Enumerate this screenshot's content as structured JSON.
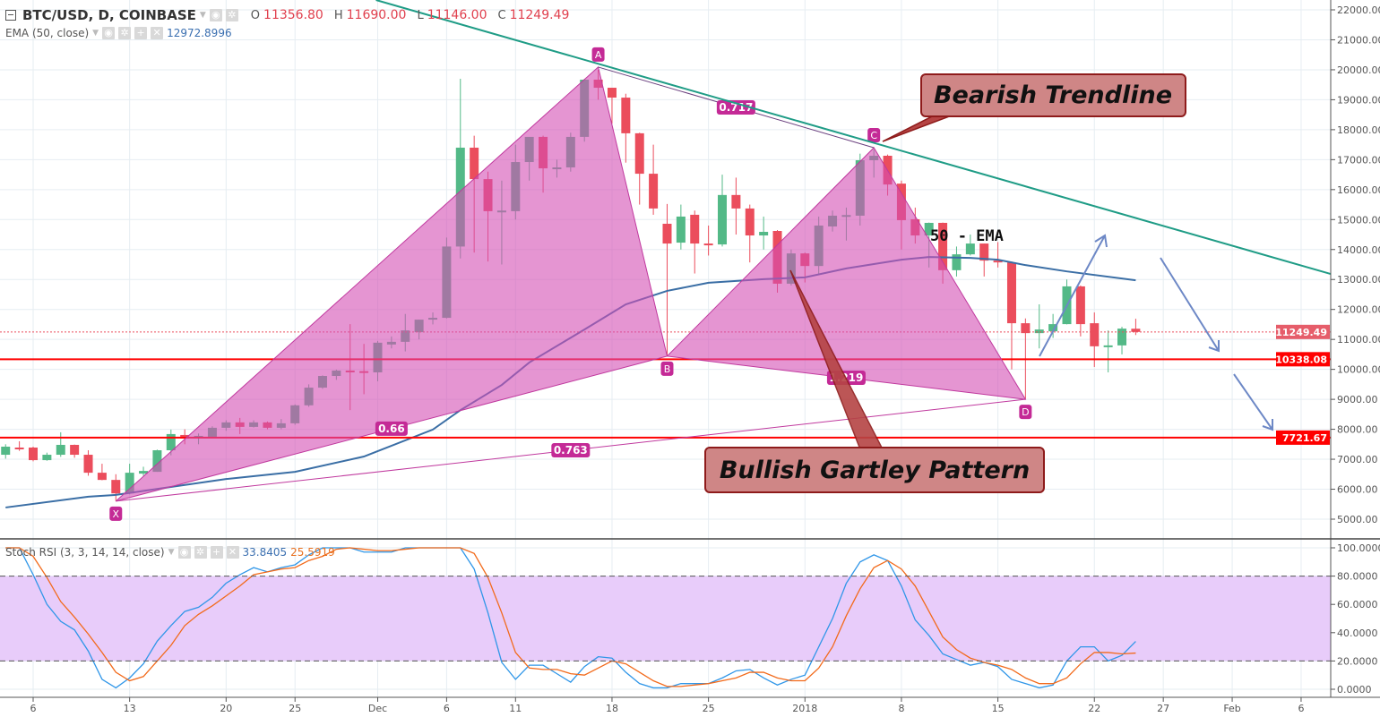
{
  "header": {
    "symbol": "BTC/USD, D, COINBASE",
    "o_label": "O",
    "o_value": "11356.80",
    "h_label": "H",
    "h_value": "11690.00",
    "l_label": "L",
    "l_value": "11146.00",
    "c_label": "C",
    "c_value": "11249.49",
    "ema_label": "EMA (50, close)",
    "ema_value": "12972.8996",
    "stoch_label": "Stoch RSI (3, 3, 14, 14, close)",
    "stoch_k_value": "33.8405",
    "stoch_d_value": "25.5919",
    "icons": [
      "eye-icon",
      "gear-icon",
      "plus-icon",
      "close-icon"
    ]
  },
  "colors": {
    "up": "#53b987",
    "down": "#eb4d5c",
    "ema": "#3a6ea5",
    "trendline": "#1f9c86",
    "pattern_fill": "#d44fb4",
    "stoch_k": "#2f96e8",
    "stoch_d": "#f26a1b",
    "stoch_band": "#e8ccfa",
    "support": "#ff0000",
    "callout_fill": "#cf8686",
    "callout_border": "#8e1b1b",
    "arrow": "#6d88c6"
  },
  "chart_data": [
    {
      "type": "candlestick",
      "title": "BTC/USD, D, COINBASE",
      "ylim": [
        4500,
        22300
      ],
      "y_ticks": [
        "22000.00",
        "21000.00",
        "20000.00",
        "19000.00",
        "18000.00",
        "17000.00",
        "16000.00",
        "15000.00",
        "14000.00",
        "13000.00",
        "12000.00",
        "11000.00",
        "10000.00",
        "9000.00",
        "8000.00",
        "7000.00",
        "6000.00",
        "5000.00"
      ],
      "x_ticks": [
        {
          "date": "2017-11-06",
          "label": "6"
        },
        {
          "date": "2017-11-13",
          "label": "13"
        },
        {
          "date": "2017-11-20",
          "label": "20"
        },
        {
          "date": "2017-11-25",
          "label": "25"
        },
        {
          "date": "2017-12-01",
          "label": "Dec"
        },
        {
          "date": "2017-12-06",
          "label": "6"
        },
        {
          "date": "2017-12-11",
          "label": "11"
        },
        {
          "date": "2017-12-18",
          "label": "18"
        },
        {
          "date": "2017-12-25",
          "label": "25"
        },
        {
          "date": "2018-01-01",
          "label": "2018"
        },
        {
          "date": "2018-01-08",
          "label": "8"
        },
        {
          "date": "2018-01-15",
          "label": "15"
        },
        {
          "date": "2018-01-22",
          "label": "22"
        },
        {
          "date": "2018-01-27",
          "label": "27"
        },
        {
          "date": "2018-02-01",
          "label": "Feb"
        },
        {
          "date": "2018-02-06",
          "label": "6"
        }
      ],
      "grid": true,
      "candles": [
        [
          "2017-11-04",
          7150,
          7500,
          7020,
          7420
        ],
        [
          "2017-11-05",
          7390,
          7600,
          7280,
          7360
        ],
        [
          "2017-11-06",
          7390,
          7420,
          6930,
          6970
        ],
        [
          "2017-11-07",
          6970,
          7220,
          6950,
          7150
        ],
        [
          "2017-11-08",
          7150,
          7900,
          7080,
          7480
        ],
        [
          "2017-11-09",
          7480,
          7490,
          7050,
          7150
        ],
        [
          "2017-11-10",
          7150,
          7300,
          6450,
          6550
        ],
        [
          "2017-11-11",
          6550,
          6850,
          6300,
          6310
        ],
        [
          "2017-11-12",
          6310,
          6500,
          5600,
          5860
        ],
        [
          "2017-11-13",
          5860,
          6850,
          5830,
          6550
        ],
        [
          "2017-11-14",
          6520,
          6750,
          6450,
          6610
        ],
        [
          "2017-11-15",
          6580,
          7320,
          6580,
          7300
        ],
        [
          "2017-11-16",
          7300,
          7990,
          7130,
          7840
        ],
        [
          "2017-11-17",
          7810,
          8000,
          7500,
          7690
        ],
        [
          "2017-11-18",
          7750,
          7860,
          7500,
          7780
        ],
        [
          "2017-11-19",
          7750,
          8100,
          7700,
          8050
        ],
        [
          "2017-11-20",
          8050,
          8300,
          7950,
          8230
        ],
        [
          "2017-11-21",
          8230,
          8380,
          7840,
          8080
        ],
        [
          "2017-11-22",
          8080,
          8300,
          8060,
          8230
        ],
        [
          "2017-11-23",
          8230,
          8260,
          8000,
          8050
        ],
        [
          "2017-11-24",
          8050,
          8340,
          8000,
          8200
        ],
        [
          "2017-11-25",
          8200,
          8830,
          8150,
          8800
        ],
        [
          "2017-11-26",
          8800,
          9500,
          8750,
          9390
        ],
        [
          "2017-11-27",
          9390,
          9800,
          9350,
          9780
        ],
        [
          "2017-11-28",
          9780,
          9990,
          9650,
          9960
        ],
        [
          "2017-11-29",
          9960,
          11510,
          8640,
          9940
        ],
        [
          "2017-11-30",
          9940,
          10850,
          9170,
          9910
        ],
        [
          "2017-12-01",
          9900,
          10950,
          9600,
          10890
        ],
        [
          "2017-12-02",
          10830,
          11100,
          10700,
          10920
        ],
        [
          "2017-12-03",
          10920,
          11850,
          10600,
          11300
        ],
        [
          "2017-12-04",
          11240,
          11660,
          11000,
          11660
        ],
        [
          "2017-12-05",
          11660,
          11900,
          11500,
          11720
        ],
        [
          "2017-12-06",
          11720,
          14400,
          11700,
          14100
        ],
        [
          "2017-12-07",
          14100,
          19700,
          13700,
          17400
        ],
        [
          "2017-12-08",
          17400,
          17800,
          13900,
          16350
        ],
        [
          "2017-12-09",
          16350,
          16600,
          13600,
          15280
        ],
        [
          "2017-12-10",
          15280,
          16300,
          13500,
          15300
        ],
        [
          "2017-12-11",
          15280,
          17500,
          15000,
          16920
        ],
        [
          "2017-12-12",
          16920,
          17700,
          16300,
          17760
        ],
        [
          "2017-12-13",
          17760,
          17800,
          15900,
          16710
        ],
        [
          "2017-12-14",
          16710,
          17000,
          16400,
          16740
        ],
        [
          "2017-12-15",
          16740,
          17900,
          16600,
          17760
        ],
        [
          "2017-12-16",
          17760,
          19700,
          17600,
          19670
        ],
        [
          "2017-12-17",
          19670,
          20000,
          19000,
          19400
        ],
        [
          "2017-12-18",
          19400,
          19400,
          18200,
          19070
        ],
        [
          "2017-12-19",
          19070,
          19200,
          16900,
          17880
        ],
        [
          "2017-12-20",
          17880,
          17900,
          15500,
          16530
        ],
        [
          "2017-12-21",
          16530,
          17500,
          15160,
          15370
        ],
        [
          "2017-12-22",
          14860,
          15520,
          10440,
          14200
        ],
        [
          "2017-12-23",
          14230,
          15500,
          14000,
          15100
        ],
        [
          "2017-12-24",
          15160,
          15300,
          13200,
          14200
        ],
        [
          "2017-12-25",
          14200,
          14800,
          13800,
          14180
        ],
        [
          "2017-12-26",
          14170,
          16500,
          14100,
          15820
        ],
        [
          "2017-12-27",
          15820,
          16400,
          14500,
          15370
        ],
        [
          "2017-12-28",
          15370,
          15500,
          13570,
          14470
        ],
        [
          "2017-12-29",
          14470,
          15100,
          14000,
          14590
        ],
        [
          "2017-12-30",
          14620,
          14650,
          12560,
          12860
        ],
        [
          "2017-12-31",
          12860,
          14000,
          12800,
          13870
        ],
        [
          "2018-01-01",
          13870,
          13900,
          12900,
          13450
        ],
        [
          "2018-01-02",
          13450,
          15100,
          13150,
          14800
        ],
        [
          "2018-01-03",
          14770,
          15300,
          14600,
          15130
        ],
        [
          "2018-01-04",
          15150,
          15400,
          14300,
          15150
        ],
        [
          "2018-01-05",
          15130,
          17200,
          14800,
          16980
        ],
        [
          "2018-01-06",
          16980,
          17340,
          16400,
          17130
        ],
        [
          "2018-01-07",
          17130,
          17170,
          15800,
          16170
        ],
        [
          "2018-01-08",
          16200,
          16300,
          14000,
          14980
        ],
        [
          "2018-01-09",
          15010,
          15400,
          14200,
          14470
        ],
        [
          "2018-01-10",
          14470,
          14900,
          13400,
          14890
        ],
        [
          "2018-01-11",
          14890,
          14900,
          12860,
          13310
        ],
        [
          "2018-01-12",
          13310,
          14100,
          13100,
          13840
        ],
        [
          "2018-01-13",
          13840,
          14500,
          13800,
          14200
        ],
        [
          "2018-01-14",
          14200,
          14200,
          13100,
          13630
        ],
        [
          "2018-01-15",
          13630,
          14250,
          13400,
          13570
        ],
        [
          "2018-01-16",
          13570,
          13600,
          10000,
          11540
        ],
        [
          "2018-01-17",
          11540,
          11700,
          9000,
          11210
        ],
        [
          "2018-01-18",
          11210,
          12170,
          10700,
          11330
        ],
        [
          "2018-01-19",
          11270,
          11850,
          11050,
          11510
        ],
        [
          "2018-01-20",
          11510,
          13000,
          11500,
          12770
        ],
        [
          "2018-01-21",
          12770,
          12800,
          11100,
          11510
        ],
        [
          "2018-01-22",
          11540,
          11900,
          10080,
          10770
        ],
        [
          "2018-01-23",
          10800,
          11300,
          9900,
          10800
        ],
        [
          "2018-01-24",
          10800,
          11420,
          10500,
          11360
        ],
        [
          "2018-01-25",
          11356.8,
          11690,
          11146,
          11249.49
        ]
      ],
      "ema50": [
        [
          "2017-11-04",
          5390
        ],
        [
          "2017-11-10",
          5750
        ],
        [
          "2017-11-12",
          5810
        ],
        [
          "2017-11-20",
          6340
        ],
        [
          "2017-11-25",
          6580
        ],
        [
          "2017-11-30",
          7090
        ],
        [
          "2017-12-05",
          7990
        ],
        [
          "2017-12-07",
          8640
        ],
        [
          "2017-12-10",
          9480
        ],
        [
          "2017-12-12",
          10230
        ],
        [
          "2017-12-16",
          11330
        ],
        [
          "2017-12-19",
          12170
        ],
        [
          "2017-12-22",
          12620
        ],
        [
          "2017-12-25",
          12890
        ],
        [
          "2017-12-29",
          13010
        ],
        [
          "2018-01-01",
          13070
        ],
        [
          "2018-01-04",
          13370
        ],
        [
          "2018-01-08",
          13660
        ],
        [
          "2018-01-10",
          13750
        ],
        [
          "2018-01-13",
          13720
        ],
        [
          "2018-01-15",
          13660
        ],
        [
          "2018-01-17",
          13480
        ],
        [
          "2018-01-20",
          13270
        ],
        [
          "2018-01-25",
          12972.8996
        ]
      ],
      "price_labels": [
        {
          "value": 11249.49,
          "label": "11249.49",
          "style": "last"
        },
        {
          "value": 10338.08,
          "label": "10338.08",
          "style": "support"
        },
        {
          "value": 7721.67,
          "label": "7721.67",
          "style": "support"
        }
      ],
      "trendline": [
        [
          "2017-12-17",
          20200
        ],
        [
          "2018-01-06",
          17560
        ]
      ],
      "pattern": {
        "points": [
          {
            "label": "X",
            "date": "2017-11-12",
            "price": 5600
          },
          {
            "label": "A",
            "date": "2017-12-17",
            "price": 20090
          },
          {
            "label": "B",
            "date": "2017-12-22",
            "price": 10440
          },
          {
            "label": "C",
            "date": "2018-01-06",
            "price": 17400
          },
          {
            "label": "D",
            "date": "2018-01-17",
            "price": 9000
          }
        ],
        "ratios": [
          {
            "from": "X",
            "to": "B",
            "label": "0.66"
          },
          {
            "from": "X",
            "to": "D",
            "label": "0.763"
          },
          {
            "from": "A",
            "to": "C",
            "label": "0.717"
          },
          {
            "from": "B",
            "to": "D",
            "label": "1.219"
          }
        ]
      },
      "annotations": {
        "bearish": "Bearish Trendline",
        "bullish": "Bullish Gartley Pattern",
        "ema": "50 - EMA"
      }
    },
    {
      "type": "line",
      "title": "Stoch RSI (3, 3, 14, 14, close)",
      "ylim": [
        0,
        100
      ],
      "y_ticks": [
        "100.0000",
        "80.0000",
        "60.0000",
        "40.0000",
        "20.0000",
        "0.0000"
      ],
      "band": [
        20,
        80
      ],
      "series": [
        {
          "name": "K",
          "values": [
            100,
            100,
            81,
            60,
            48,
            42,
            27,
            7,
            1,
            8,
            18,
            34,
            45,
            55,
            58,
            65,
            75,
            81,
            86,
            83,
            86,
            88,
            95,
            100,
            100,
            100,
            97,
            97,
            97,
            100,
            100,
            100,
            100,
            100,
            85,
            54,
            19,
            7,
            17,
            17,
            11,
            5,
            16,
            23,
            22,
            12,
            4,
            1,
            1,
            4,
            4,
            4,
            8,
            13,
            14,
            8,
            3,
            7,
            10,
            30,
            50,
            75,
            90,
            95,
            91,
            73,
            49,
            38,
            25,
            21,
            17,
            19,
            16,
            7,
            4,
            1,
            3,
            20,
            30,
            30,
            20,
            24,
            33.8405
          ]
        },
        {
          "name": "D",
          "values": [
            100,
            100,
            94,
            79,
            62,
            51,
            39,
            26,
            12,
            6,
            9,
            20,
            31,
            45,
            53,
            59,
            66,
            73,
            81,
            83,
            85,
            86,
            91,
            94,
            99,
            100,
            99,
            98,
            98,
            99,
            100,
            100,
            100,
            100,
            96,
            79,
            54,
            26,
            15,
            14,
            14,
            11,
            10,
            15,
            20,
            18,
            12,
            6,
            2,
            2,
            3,
            4,
            6,
            8,
            12,
            12,
            8,
            6,
            6,
            15,
            30,
            52,
            71,
            86,
            91,
            85,
            73,
            55,
            37,
            28,
            22,
            19,
            17,
            14,
            8,
            4,
            4,
            8,
            18,
            26,
            26,
            25,
            25.5919
          ]
        }
      ]
    }
  ]
}
